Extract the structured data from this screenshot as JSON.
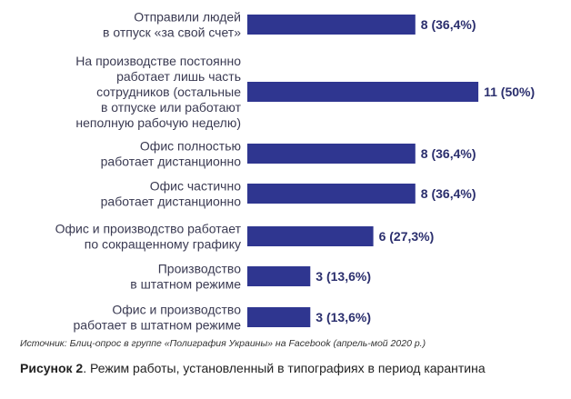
{
  "chart_data": {
    "type": "bar",
    "orientation": "horizontal",
    "categories": [
      [
        "Отправили людей",
        "в отпуск «за свой счет»"
      ],
      [
        "На производстве постоянно",
        "работает лишь часть",
        "сотрудников (остальные",
        "в отпуске или работают",
        "неполную рабочую неделю)"
      ],
      [
        "Офис полностью",
        "работает дистанционно"
      ],
      [
        "Офис частично",
        "работает дистанционно"
      ],
      [
        "Офис и производство работает",
        "по сокращенному графику"
      ],
      [
        "Производство",
        "в штатном режиме"
      ],
      [
        "Офис и производство",
        "работает в штатном режиме"
      ]
    ],
    "values": [
      8,
      11,
      8,
      8,
      6,
      3,
      3
    ],
    "value_labels": [
      "8 (36,4%)",
      "11 (50%)",
      "8 (36,4%)",
      "8 (36,4%)",
      "6 (27,3%)",
      "3 (13,6%)",
      "3 (13,6%)"
    ],
    "bar_color": "#2f3690",
    "xlim": [
      0,
      11
    ]
  },
  "source": "Источник: Блиц-опрос в группе «Полиграфия Украины» на Facebook (апрель-мой 2020 р.)",
  "caption": {
    "label": "Рисунок 2",
    "text": ". Режим работы, установленный в типографиях в период карантина"
  }
}
